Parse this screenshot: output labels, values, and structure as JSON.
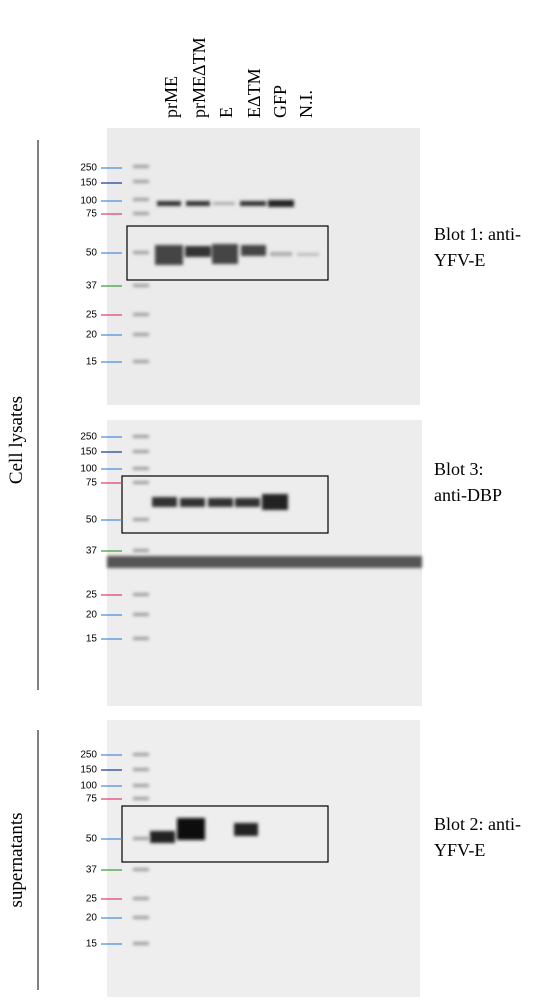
{
  "lanes": [
    "prME",
    "prMEΔTM",
    "E",
    "EΔTM",
    "GFP",
    "N.I."
  ],
  "side_labels": {
    "cell_lysates": "Cell lysates",
    "supernatants": "supernatants"
  },
  "blots": [
    {
      "label": [
        "Blot 1: anti-",
        "YFV-E"
      ],
      "markers": [
        "250",
        "150",
        "100",
        "75",
        "50",
        "37",
        "25",
        "20",
        "15"
      ]
    },
    {
      "label": [
        "Blot 3:",
        "anti-DBP"
      ],
      "markers": [
        "250",
        "150",
        "100",
        "75",
        "50",
        "37",
        "25",
        "20",
        "15"
      ]
    },
    {
      "label": [
        "Blot 2: anti-",
        "YFV-E"
      ],
      "markers": [
        "250",
        "150",
        "100",
        "75",
        "50",
        "37",
        "25",
        "20",
        "15"
      ]
    }
  ]
}
